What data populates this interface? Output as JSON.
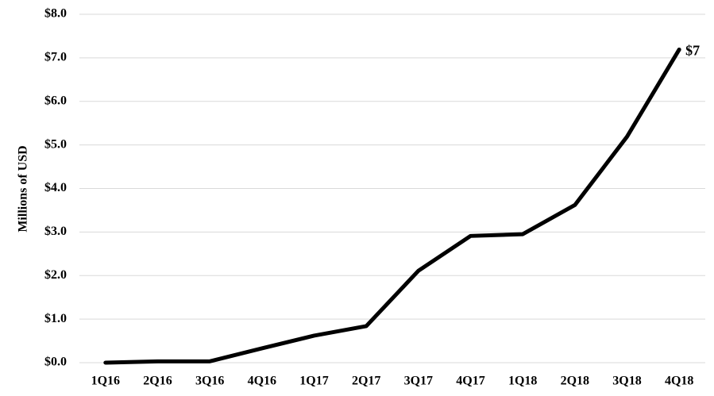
{
  "chart_data": {
    "type": "line",
    "y_label": "Millions of USD",
    "categories": [
      "1Q16",
      "2Q16",
      "3Q16",
      "4Q16",
      "1Q17",
      "2Q17",
      "3Q17",
      "4Q17",
      "1Q18",
      "2Q18",
      "3Q18",
      "4Q18"
    ],
    "values": [
      0.0,
      0.03,
      0.03,
      0.33,
      0.62,
      0.84,
      2.11,
      2.91,
      2.95,
      3.62,
      5.19,
      7.19
    ],
    "value_labels": [
      null,
      null,
      null,
      null,
      null,
      null,
      null,
      null,
      null,
      null,
      null,
      "$7"
    ],
    "color": "#000000",
    "ylim": [
      0,
      8
    ],
    "yticks": [
      {
        "value": 0,
        "label": "$0.0"
      },
      {
        "value": 1,
        "label": "$1.0"
      },
      {
        "value": 2,
        "label": "$2.0"
      },
      {
        "value": 3,
        "label": "$3.0"
      },
      {
        "value": 4,
        "label": "$4.0"
      },
      {
        "value": 5,
        "label": "$5.0"
      },
      {
        "value": 6,
        "label": "$6.0"
      },
      {
        "value": 7,
        "label": "$7.0"
      },
      {
        "value": 8,
        "label": "$8.0"
      }
    ],
    "grid": true
  }
}
